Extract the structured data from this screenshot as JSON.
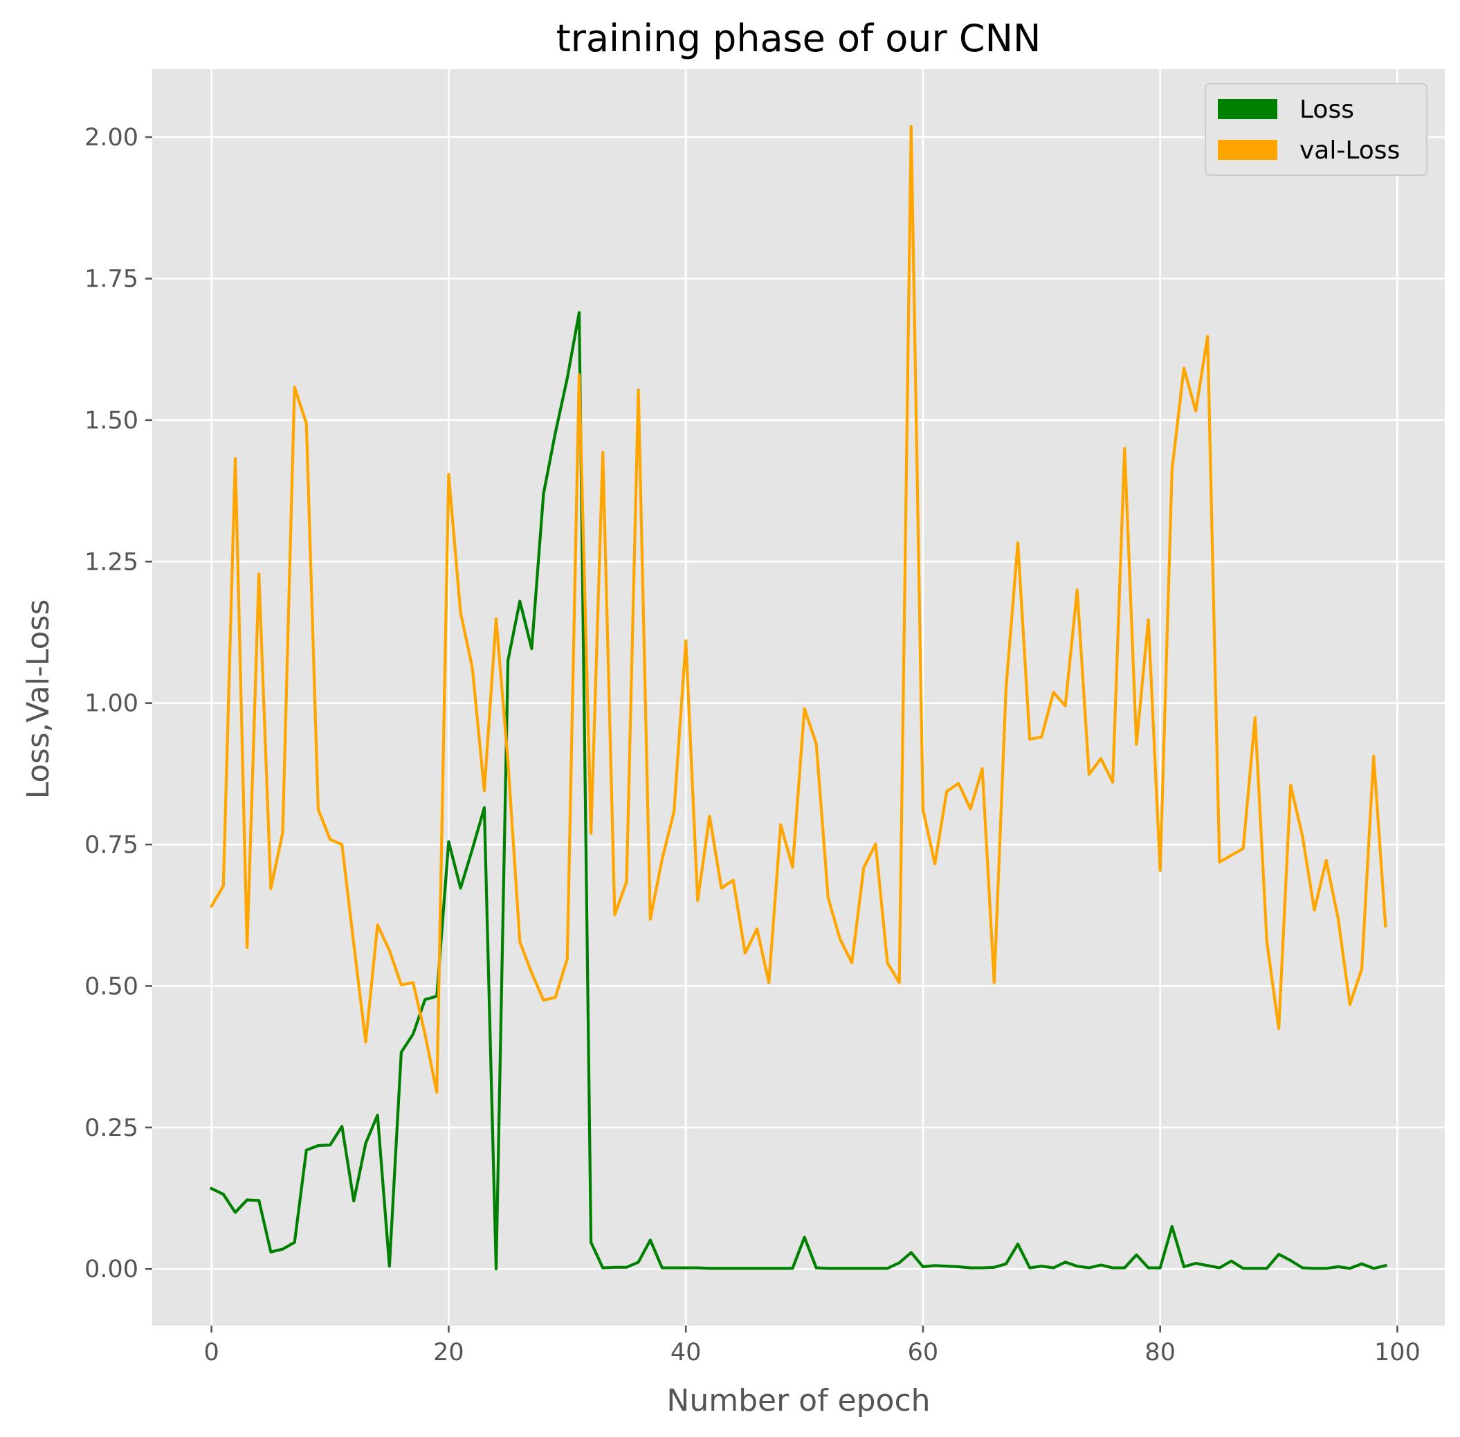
{
  "chart_data": {
    "type": "line",
    "title": "training phase of our CNN",
    "xlabel": "Number of epoch",
    "ylabel": "Loss,Val-Loss",
    "xlim": [
      -5,
      104
    ],
    "ylim": [
      -0.1,
      2.12
    ],
    "xticks": [
      0,
      20,
      40,
      60,
      80,
      100
    ],
    "xtick_labels": [
      "0",
      "20",
      "40",
      "60",
      "80",
      "100"
    ],
    "yticks": [
      0.0,
      0.25,
      0.5,
      0.75,
      1.0,
      1.25,
      1.5,
      1.75,
      2.0
    ],
    "ytick_labels": [
      "0.00",
      "0.25",
      "0.50",
      "0.75",
      "1.00",
      "1.25",
      "1.50",
      "1.75",
      "2.00"
    ],
    "grid": true,
    "legend_position": "top-right",
    "colors": {
      "background": "#e5e5e5",
      "grid": "#ffffff",
      "frame": "#ffffff"
    },
    "series": [
      {
        "name": "Loss",
        "color": "#008000",
        "x": [
          0,
          1,
          2,
          3,
          4,
          5,
          6,
          7,
          8,
          9,
          10,
          11,
          12,
          13,
          14,
          15,
          16,
          17,
          18,
          19,
          20,
          21,
          22,
          23,
          24,
          25,
          26,
          27,
          28,
          29,
          30,
          31,
          32,
          33,
          34,
          35,
          36,
          37,
          38,
          39,
          40,
          41,
          42,
          43,
          44,
          45,
          46,
          47,
          48,
          49,
          50,
          51,
          52,
          53,
          54,
          55,
          56,
          57,
          58,
          59,
          60,
          61,
          62,
          63,
          64,
          65,
          66,
          67,
          68,
          69,
          70,
          71,
          72,
          73,
          74,
          75,
          76,
          77,
          78,
          79,
          80,
          81,
          82,
          83,
          84,
          85,
          86,
          87,
          88,
          89,
          90,
          91,
          92,
          93,
          94,
          95,
          96,
          97,
          98,
          99
        ],
        "values": [
          0.142,
          0.132,
          0.1,
          0.122,
          0.121,
          0.03,
          0.035,
          0.047,
          0.21,
          0.218,
          0.219,
          0.252,
          0.12,
          0.222,
          0.272,
          0.005,
          0.383,
          0.415,
          0.476,
          0.482,
          0.755,
          0.673,
          0.742,
          0.815,
          0.0,
          1.075,
          1.18,
          1.096,
          1.37,
          1.478,
          1.574,
          1.69,
          0.047,
          0.002,
          0.003,
          0.003,
          0.012,
          0.051,
          0.002,
          0.002,
          0.002,
          0.002,
          0.001,
          0.001,
          0.001,
          0.001,
          0.001,
          0.001,
          0.001,
          0.001,
          0.056,
          0.002,
          0.001,
          0.001,
          0.001,
          0.001,
          0.001,
          0.001,
          0.011,
          0.029,
          0.004,
          0.006,
          0.005,
          0.004,
          0.002,
          0.002,
          0.003,
          0.009,
          0.044,
          0.002,
          0.005,
          0.002,
          0.012,
          0.005,
          0.002,
          0.007,
          0.002,
          0.002,
          0.025,
          0.002,
          0.002,
          0.075,
          0.004,
          0.01,
          0.006,
          0.002,
          0.014,
          0.001,
          0.001,
          0.001,
          0.026,
          0.015,
          0.002,
          0.001,
          0.001,
          0.004,
          0.001,
          0.009,
          0.001,
          0.006
        ]
      },
      {
        "name": "val-Loss",
        "color": "#ffa500",
        "x": [
          0,
          1,
          2,
          3,
          4,
          5,
          6,
          7,
          8,
          9,
          10,
          11,
          12,
          13,
          14,
          15,
          16,
          17,
          18,
          19,
          20,
          21,
          22,
          23,
          24,
          25,
          26,
          27,
          28,
          29,
          30,
          31,
          32,
          33,
          34,
          35,
          36,
          37,
          38,
          39,
          40,
          41,
          42,
          43,
          44,
          45,
          46,
          47,
          48,
          49,
          50,
          51,
          52,
          53,
          54,
          55,
          56,
          57,
          58,
          59,
          60,
          61,
          62,
          63,
          64,
          65,
          66,
          67,
          68,
          69,
          70,
          71,
          72,
          73,
          74,
          75,
          76,
          77,
          78,
          79,
          80,
          81,
          82,
          83,
          84,
          85,
          86,
          87,
          88,
          89,
          90,
          91,
          92,
          93,
          94,
          95,
          96,
          97,
          98,
          99
        ],
        "values": [
          0.641,
          0.677,
          1.432,
          0.568,
          1.228,
          0.672,
          0.771,
          1.558,
          1.494,
          0.812,
          0.759,
          0.75,
          0.574,
          0.401,
          0.608,
          0.563,
          0.502,
          0.506,
          0.415,
          0.312,
          1.404,
          1.16,
          1.062,
          0.845,
          1.149,
          0.897,
          0.578,
          0.523,
          0.475,
          0.48,
          0.548,
          1.58,
          0.77,
          1.443,
          0.626,
          0.684,
          1.553,
          0.618,
          0.724,
          0.808,
          1.11,
          0.651,
          0.8,
          0.673,
          0.687,
          0.558,
          0.601,
          0.506,
          0.785,
          0.71,
          0.99,
          0.928,
          0.656,
          0.583,
          0.541,
          0.709,
          0.751,
          0.541,
          0.506,
          2.019,
          0.812,
          0.716,
          0.844,
          0.858,
          0.813,
          0.884,
          0.506,
          1.026,
          1.283,
          0.936,
          0.94,
          1.019,
          0.995,
          1.2,
          0.874,
          0.902,
          0.86,
          1.45,
          0.927,
          1.147,
          0.704,
          1.412,
          1.592,
          1.516,
          1.648,
          0.719,
          0.731,
          0.743,
          0.974,
          0.578,
          0.425,
          0.855,
          0.765,
          0.634,
          0.722,
          0.62,
          0.467,
          0.53,
          0.906,
          0.606
        ]
      }
    ]
  }
}
